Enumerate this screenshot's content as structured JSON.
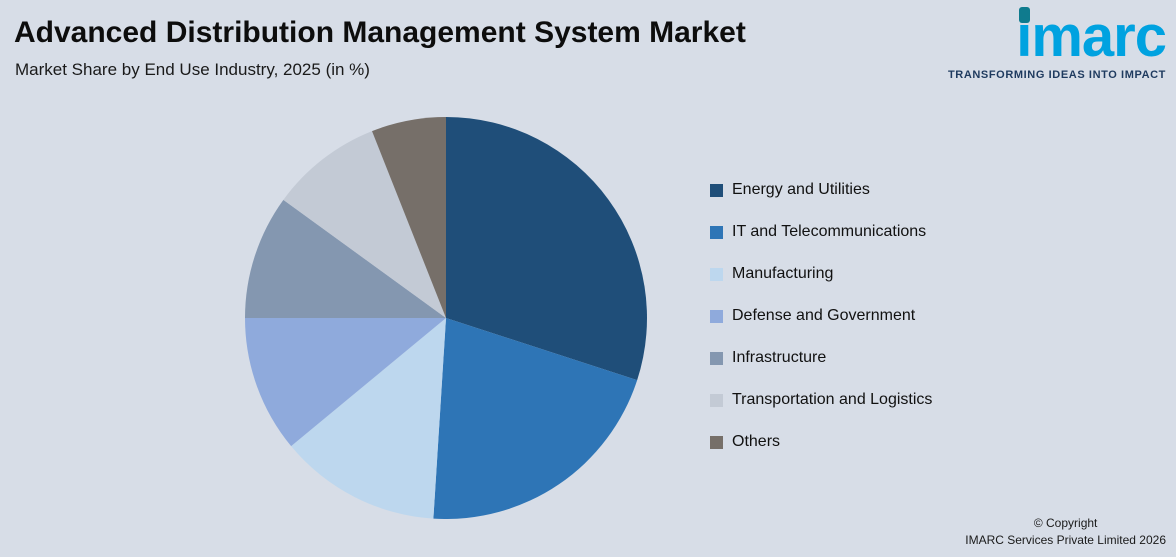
{
  "header": {
    "title": "Advanced Distribution Management System Market",
    "subtitle": "Market Share by End Use Industry, 2025 (in %)"
  },
  "logo": {
    "text": "imarc",
    "tagline": "TRANSFORMING IDEAS INTO IMPACT",
    "brand_blue": "#00A2E0",
    "dot_teal": "#0F7B8E"
  },
  "chart_data": {
    "type": "pie",
    "title": "Market Share by End Use Industry, 2025 (in %)",
    "units": "%",
    "legend_position": "right",
    "start_angle_deg": 0,
    "direction": "clockwise",
    "segments": [
      {
        "label": "Energy and Utilities",
        "value": 30,
        "color": "#1F4E79"
      },
      {
        "label": "IT and Telecommunications",
        "value": 21,
        "color": "#2E75B6"
      },
      {
        "label": "Manufacturing",
        "value": 13,
        "color": "#BDD7EE"
      },
      {
        "label": "Defense and Government",
        "value": 11,
        "color": "#8FAADC"
      },
      {
        "label": "Infrastructure",
        "value": 10,
        "color": "#8497B0"
      },
      {
        "label": "Transportation and Logistics",
        "value": 9,
        "color": "#C3CAD5"
      },
      {
        "label": "Others",
        "value": 6,
        "color": "#766F69"
      }
    ]
  },
  "footer": {
    "copyright_line1": "© Copyright",
    "copyright_line2": "IMARC Services Private Limited 2026"
  },
  "colors": {
    "background": "#D7DDE7"
  }
}
